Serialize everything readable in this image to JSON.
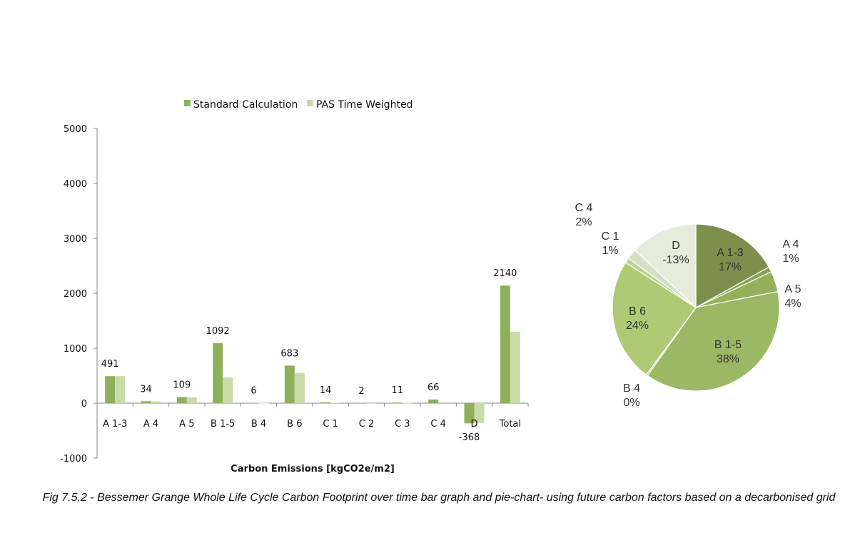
{
  "chart_data": [
    {
      "type": "bar",
      "xlabel": "Carbon Emissions [kgCO2e/m2]",
      "ylim": [
        -1000,
        5000
      ],
      "yticks": [
        -1000,
        0,
        1000,
        2000,
        3000,
        4000,
        5000
      ],
      "grid": false,
      "legend": "top",
      "categories": [
        "A 1-3",
        "A 4",
        "A 5",
        "B 1-5",
        "B 4",
        "B 6",
        "C 1",
        "C 2",
        "C 3",
        "C 4",
        "D",
        "Total"
      ],
      "series": [
        {
          "name": "Standard Calculation",
          "color": "#8fb05a",
          "values": [
            491,
            34,
            109,
            1092,
            6,
            683,
            14,
            2,
            11,
            66,
            -368,
            2140
          ]
        },
        {
          "name": "PAS Time Weighted",
          "color": "#c8dca8",
          "values": [
            491,
            30,
            105,
            470,
            4,
            550,
            8,
            1,
            6,
            15,
            -360,
            1300
          ]
        }
      ],
      "data_labels": [
        "491",
        "34",
        "109",
        "1092",
        "6",
        "683",
        "14",
        "2",
        "11",
        "66",
        "-368",
        "2140"
      ]
    },
    {
      "type": "pie",
      "slices": [
        {
          "label": "A 1-3",
          "pct_label": "17%",
          "value": 17,
          "color": "#7c8f4b"
        },
        {
          "label": "A 4",
          "pct_label": "1%",
          "value": 1,
          "color": "#88a355"
        },
        {
          "label": "A 5",
          "pct_label": "4%",
          "value": 4,
          "color": "#93b05c"
        },
        {
          "label": "B 1-5",
          "pct_label": "38%",
          "value": 38,
          "color": "#9bb865"
        },
        {
          "label": "B 4",
          "pct_label": "0%",
          "value": 0.3,
          "color": "#a6c36e"
        },
        {
          "label": "B 6",
          "pct_label": "24%",
          "value": 24,
          "color": "#afca74"
        },
        {
          "label": "C 1",
          "pct_label": "1%",
          "value": 1,
          "color": "#bcd296"
        },
        {
          "label": "C 4",
          "pct_label": "2%",
          "value": 2,
          "color": "#d5e0c4"
        },
        {
          "label": "D",
          "pct_label": "-13%",
          "value": 13,
          "color": "#e6ecdc"
        }
      ]
    }
  ],
  "caption": "Fig 7.5.2 - Bessemer Grange Whole Life Cycle Carbon Footprint over time bar graph and pie-chart- using future carbon factors based on a decarbonised grid"
}
